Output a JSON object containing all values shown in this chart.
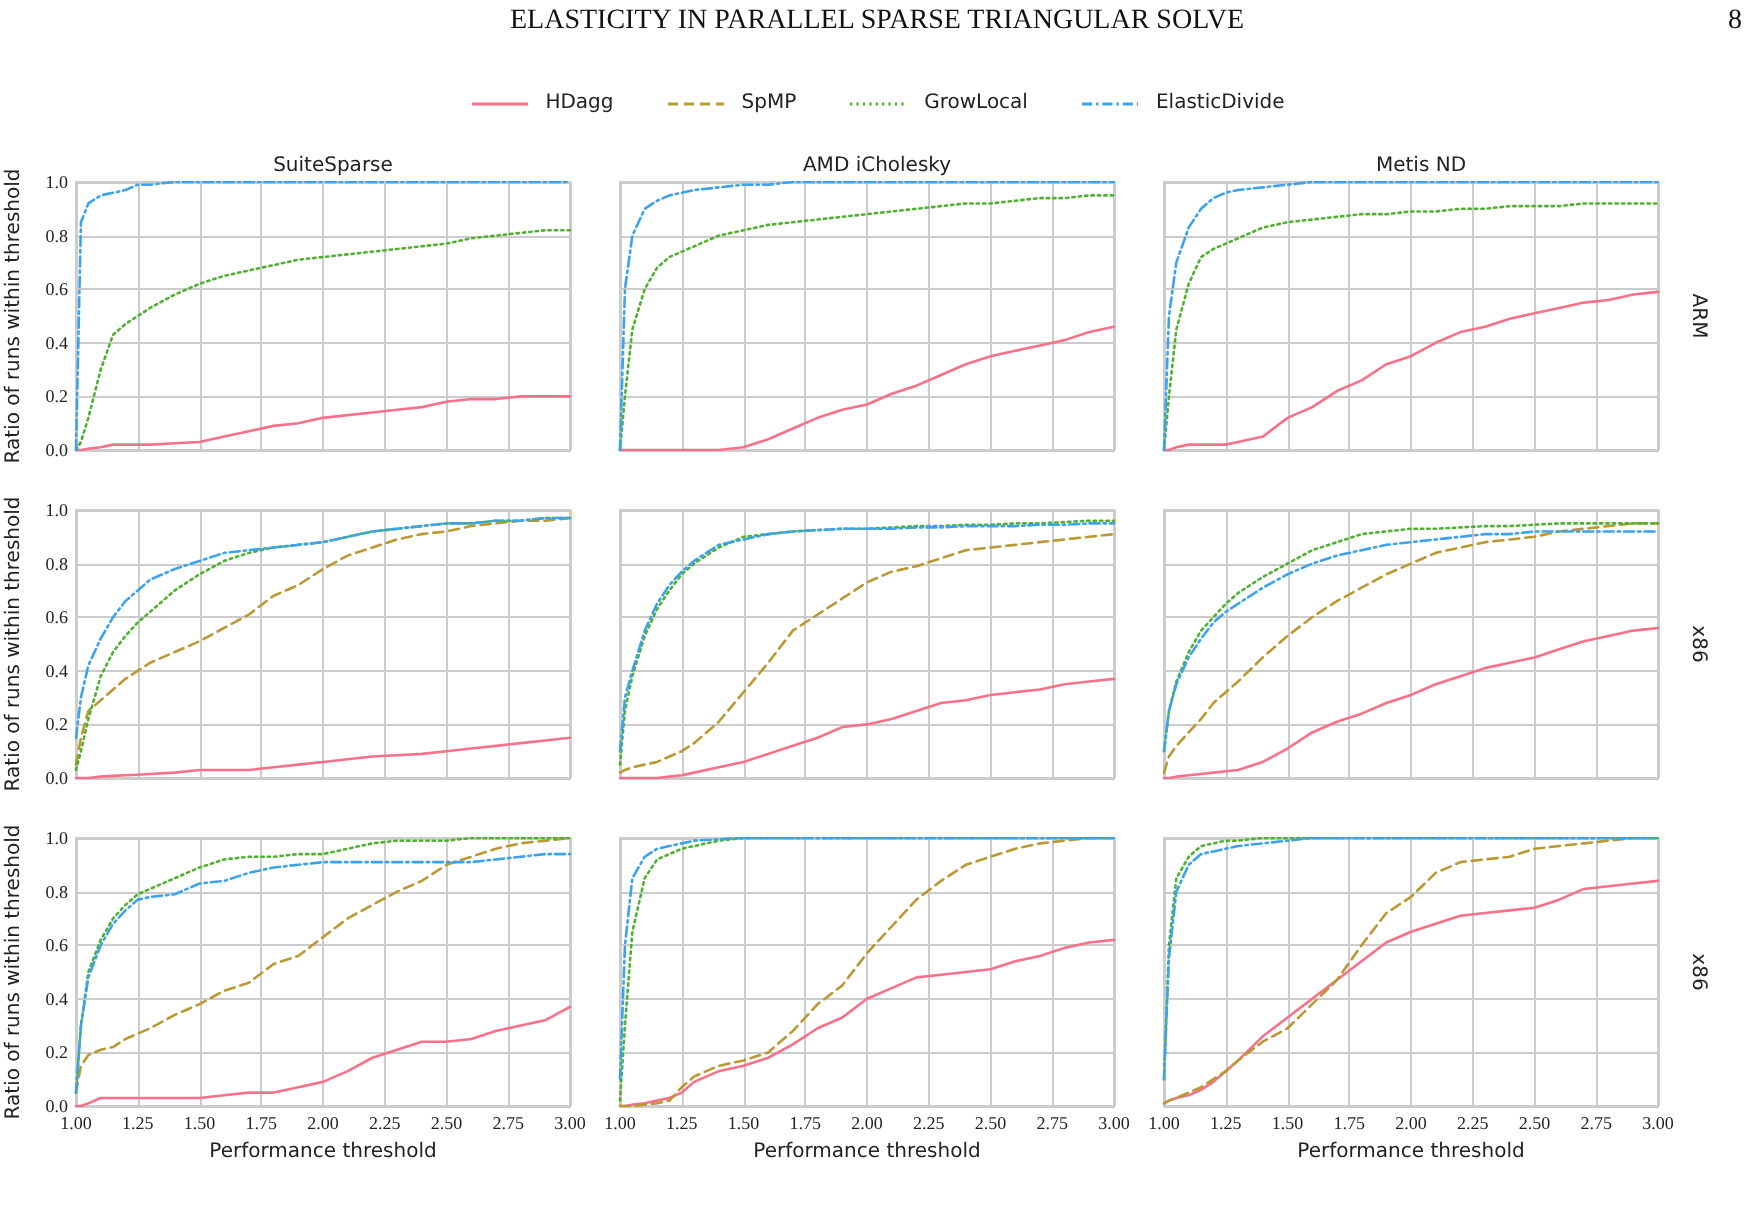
{
  "chart_data": [
    {
      "type": "line",
      "title": "SuiteSparse",
      "ylabel": "Ratio of runs within threshold",
      "annotations": [
        "ELASTICITY IN PARALLEL SPARSE TRIANGULAR SOLVE",
        "8"
      ],
      "legend": "top",
      "tick_labels": "y",
      "grid": true,
      "marker": "none",
      "x": [
        1,
        1.02,
        1.05,
        1.1,
        1.15,
        1.2,
        1.25,
        1.3,
        1.4,
        1.5,
        1.6,
        1.7,
        1.8,
        1.9,
        2,
        2.1,
        2.2,
        2.3,
        2.4,
        2.5,
        2.6,
        2.7,
        2.8,
        2.9,
        3
      ],
      "xlim": [
        1,
        3
      ],
      "xticks": [
        1,
        1.25,
        1.5,
        1.75,
        2,
        2.25,
        2.5,
        2.75,
        3
      ],
      "ylim": [
        0,
        1
      ],
      "yticks": [
        {
          "value": 0,
          "label": "0.0"
        },
        {
          "value": 0.2,
          "label": "0.2"
        },
        {
          "value": 0.4,
          "label": "0.4"
        },
        {
          "value": 0.6,
          "label": "0.6"
        },
        {
          "value": 0.8,
          "label": "0.8"
        },
        {
          "value": 1,
          "label": "1.0"
        }
      ],
      "series": [
        {
          "name": "HDagg",
          "color": "#f77189",
          "line_style": "solid",
          "values": [
            0,
            0,
            0.005,
            0.01,
            0.02,
            0.02,
            0.02,
            0.02,
            0.025,
            0.03,
            0.05,
            0.07,
            0.09,
            0.1,
            0.12,
            0.13,
            0.14,
            0.15,
            0.16,
            0.18,
            0.19,
            0.19,
            0.2,
            0.2,
            0.2
          ]
        },
        {
          "name": "GrowLocal",
          "color": "#50b131",
          "line_style": "dotted",
          "values": [
            0,
            0.03,
            0.12,
            0.3,
            0.43,
            0.47,
            0.5,
            0.53,
            0.58,
            0.62,
            0.65,
            0.67,
            0.69,
            0.71,
            0.72,
            0.73,
            0.74,
            0.75,
            0.76,
            0.77,
            0.79,
            0.8,
            0.81,
            0.82,
            0.82
          ]
        },
        {
          "name": "ElasticDivide",
          "color": "#3ba3ec",
          "line_style": "dashdot",
          "values": [
            0,
            0.85,
            0.92,
            0.95,
            0.96,
            0.97,
            0.99,
            0.99,
            1,
            1,
            1,
            1,
            1,
            1,
            1,
            1,
            1,
            1,
            1,
            1,
            1,
            1,
            1,
            1,
            1
          ]
        }
      ]
    },
    {
      "type": "line",
      "title": "AMD iCholesky",
      "tick_labels": false,
      "grid": true,
      "marker": "none",
      "x": [
        1,
        1.02,
        1.05,
        1.1,
        1.15,
        1.2,
        1.25,
        1.3,
        1.4,
        1.5,
        1.6,
        1.7,
        1.8,
        1.9,
        2,
        2.1,
        2.2,
        2.3,
        2.4,
        2.5,
        2.6,
        2.7,
        2.8,
        2.9,
        3
      ],
      "xlim": [
        1,
        3
      ],
      "xticks": [
        1,
        1.25,
        1.5,
        1.75,
        2,
        2.25,
        2.5,
        2.75,
        3
      ],
      "ylim": [
        0,
        1
      ],
      "yticks": [
        0,
        0.2,
        0.4,
        0.6,
        0.8,
        1
      ],
      "series": [
        {
          "name": "HDagg",
          "color": "#f77189",
          "line_style": "solid",
          "values": [
            0,
            0,
            0,
            0,
            0,
            0,
            0,
            0,
            0,
            0.01,
            0.04,
            0.08,
            0.12,
            0.15,
            0.17,
            0.21,
            0.24,
            0.28,
            0.32,
            0.35,
            0.37,
            0.39,
            0.41,
            0.44,
            0.46
          ]
        },
        {
          "name": "GrowLocal",
          "color": "#50b131",
          "line_style": "dotted",
          "values": [
            0,
            0.2,
            0.45,
            0.6,
            0.68,
            0.72,
            0.74,
            0.76,
            0.8,
            0.82,
            0.84,
            0.85,
            0.86,
            0.87,
            0.88,
            0.89,
            0.9,
            0.91,
            0.92,
            0.92,
            0.93,
            0.94,
            0.94,
            0.95,
            0.95
          ]
        },
        {
          "name": "ElasticDivide",
          "color": "#3ba3ec",
          "line_style": "dashdot",
          "values": [
            0,
            0.6,
            0.8,
            0.9,
            0.93,
            0.95,
            0.96,
            0.97,
            0.98,
            0.99,
            0.99,
            1,
            1,
            1,
            1,
            1,
            1,
            1,
            1,
            1,
            1,
            1,
            1,
            1,
            1
          ]
        }
      ]
    },
    {
      "type": "line",
      "title": "Metis ND",
      "annotations": [
        "ARM"
      ],
      "tick_labels": false,
      "grid": true,
      "marker": "none",
      "x": [
        1,
        1.02,
        1.05,
        1.1,
        1.15,
        1.2,
        1.25,
        1.3,
        1.4,
        1.5,
        1.6,
        1.7,
        1.8,
        1.9,
        2,
        2.1,
        2.2,
        2.3,
        2.4,
        2.5,
        2.6,
        2.7,
        2.8,
        2.9,
        3
      ],
      "xlim": [
        1,
        3
      ],
      "xticks": [
        1,
        1.25,
        1.5,
        1.75,
        2,
        2.25,
        2.5,
        2.75,
        3
      ],
      "ylim": [
        0,
        1
      ],
      "yticks": [
        0,
        0.2,
        0.4,
        0.6,
        0.8,
        1
      ],
      "series": [
        {
          "name": "HDagg",
          "color": "#f77189",
          "line_style": "solid",
          "values": [
            0,
            0,
            0.01,
            0.02,
            0.02,
            0.02,
            0.02,
            0.03,
            0.05,
            0.12,
            0.16,
            0.22,
            0.26,
            0.32,
            0.35,
            0.4,
            0.44,
            0.46,
            0.49,
            0.51,
            0.53,
            0.55,
            0.56,
            0.58,
            0.59
          ]
        },
        {
          "name": "GrowLocal",
          "color": "#50b131",
          "line_style": "dotted",
          "values": [
            0,
            0.2,
            0.45,
            0.62,
            0.72,
            0.75,
            0.77,
            0.79,
            0.83,
            0.85,
            0.86,
            0.87,
            0.88,
            0.88,
            0.89,
            0.89,
            0.9,
            0.9,
            0.91,
            0.91,
            0.91,
            0.92,
            0.92,
            0.92,
            0.92
          ]
        },
        {
          "name": "ElasticDivide",
          "color": "#3ba3ec",
          "line_style": "dashdot",
          "values": [
            0,
            0.5,
            0.7,
            0.83,
            0.9,
            0.94,
            0.96,
            0.97,
            0.98,
            0.99,
            1,
            1,
            1,
            1,
            1,
            1,
            1,
            1,
            1,
            1,
            1,
            1,
            1,
            1,
            1
          ]
        }
      ]
    },
    {
      "type": "line",
      "ylabel": "Ratio of runs within threshold",
      "tick_labels": "y",
      "grid": true,
      "marker": "none",
      "x": [
        1,
        1.02,
        1.05,
        1.1,
        1.15,
        1.2,
        1.25,
        1.3,
        1.4,
        1.5,
        1.6,
        1.7,
        1.8,
        1.9,
        2,
        2.1,
        2.2,
        2.3,
        2.4,
        2.5,
        2.6,
        2.7,
        2.8,
        2.9,
        3
      ],
      "xlim": [
        1,
        3
      ],
      "xticks": [
        1,
        1.25,
        1.5,
        1.75,
        2,
        2.25,
        2.5,
        2.75,
        3
      ],
      "ylim": [
        0,
        1
      ],
      "yticks": [
        {
          "value": 0,
          "label": "0.0"
        },
        {
          "value": 0.2,
          "label": "0.2"
        },
        {
          "value": 0.4,
          "label": "0.4"
        },
        {
          "value": 0.6,
          "label": "0.6"
        },
        {
          "value": 0.8,
          "label": "0.8"
        },
        {
          "value": 1,
          "label": "1.0"
        }
      ],
      "series": [
        {
          "name": "HDagg",
          "color": "#f77189",
          "line_style": "solid",
          "values": [
            0,
            0,
            0,
            0.005,
            0.008,
            0.01,
            0.012,
            0.015,
            0.02,
            0.03,
            0.03,
            0.03,
            0.04,
            0.05,
            0.06,
            0.07,
            0.08,
            0.085,
            0.09,
            0.1,
            0.11,
            0.12,
            0.13,
            0.14,
            0.15
          ]
        },
        {
          "name": "SpMP",
          "color": "#bb9832",
          "line_style": "dashed",
          "values": [
            0.05,
            0.15,
            0.25,
            0.29,
            0.33,
            0.37,
            0.4,
            0.43,
            0.47,
            0.51,
            0.56,
            0.61,
            0.68,
            0.72,
            0.78,
            0.83,
            0.86,
            0.89,
            0.91,
            0.92,
            0.94,
            0.95,
            0.96,
            0.96,
            0.97
          ]
        },
        {
          "name": "GrowLocal",
          "color": "#50b131",
          "line_style": "dotted",
          "values": [
            0.03,
            0.1,
            0.22,
            0.38,
            0.47,
            0.53,
            0.58,
            0.62,
            0.7,
            0.76,
            0.81,
            0.84,
            0.86,
            0.87,
            0.88,
            0.9,
            0.92,
            0.93,
            0.94,
            0.95,
            0.95,
            0.96,
            0.96,
            0.97,
            0.97
          ]
        },
        {
          "name": "ElasticDivide",
          "color": "#3ba3ec",
          "line_style": "dashdot",
          "values": [
            0.15,
            0.3,
            0.42,
            0.52,
            0.6,
            0.66,
            0.7,
            0.74,
            0.78,
            0.81,
            0.84,
            0.85,
            0.86,
            0.87,
            0.88,
            0.9,
            0.92,
            0.93,
            0.94,
            0.95,
            0.95,
            0.96,
            0.96,
            0.97,
            0.97
          ]
        }
      ]
    },
    {
      "type": "line",
      "tick_labels": false,
      "grid": true,
      "marker": "none",
      "x": [
        1,
        1.02,
        1.05,
        1.1,
        1.15,
        1.2,
        1.25,
        1.3,
        1.4,
        1.5,
        1.6,
        1.7,
        1.8,
        1.9,
        2,
        2.1,
        2.2,
        2.3,
        2.4,
        2.5,
        2.6,
        2.7,
        2.8,
        2.9,
        3
      ],
      "xlim": [
        1,
        3
      ],
      "xticks": [
        1,
        1.25,
        1.5,
        1.75,
        2,
        2.25,
        2.5,
        2.75,
        3
      ],
      "ylim": [
        0,
        1
      ],
      "yticks": [
        0,
        0.2,
        0.4,
        0.6,
        0.8,
        1
      ],
      "series": [
        {
          "name": "HDagg",
          "color": "#f77189",
          "line_style": "solid",
          "values": [
            0,
            0,
            0,
            0,
            0,
            0.005,
            0.01,
            0.02,
            0.04,
            0.06,
            0.09,
            0.12,
            0.15,
            0.19,
            0.2,
            0.22,
            0.25,
            0.28,
            0.29,
            0.31,
            0.32,
            0.33,
            0.35,
            0.36,
            0.37
          ]
        },
        {
          "name": "SpMP",
          "color": "#bb9832",
          "line_style": "dashed",
          "values": [
            0.02,
            0.03,
            0.04,
            0.05,
            0.06,
            0.08,
            0.1,
            0.13,
            0.21,
            0.32,
            0.43,
            0.55,
            0.61,
            0.67,
            0.73,
            0.77,
            0.79,
            0.82,
            0.85,
            0.86,
            0.87,
            0.88,
            0.89,
            0.9,
            0.91
          ]
        },
        {
          "name": "GrowLocal",
          "color": "#50b131",
          "line_style": "dotted",
          "values": [
            0.05,
            0.25,
            0.38,
            0.53,
            0.63,
            0.7,
            0.76,
            0.8,
            0.86,
            0.9,
            0.91,
            0.92,
            0.925,
            0.93,
            0.93,
            0.935,
            0.94,
            0.94,
            0.945,
            0.945,
            0.95,
            0.95,
            0.955,
            0.96,
            0.96
          ]
        },
        {
          "name": "ElasticDivide",
          "color": "#3ba3ec",
          "line_style": "dashdot",
          "values": [
            0.1,
            0.3,
            0.4,
            0.55,
            0.65,
            0.72,
            0.77,
            0.81,
            0.87,
            0.89,
            0.91,
            0.92,
            0.925,
            0.93,
            0.93,
            0.93,
            0.935,
            0.935,
            0.94,
            0.94,
            0.94,
            0.945,
            0.945,
            0.95,
            0.95
          ]
        }
      ]
    },
    {
      "type": "line",
      "annotations": [
        "x86"
      ],
      "tick_labels": false,
      "grid": true,
      "marker": "none",
      "x": [
        1,
        1.02,
        1.05,
        1.1,
        1.15,
        1.2,
        1.25,
        1.3,
        1.4,
        1.5,
        1.6,
        1.7,
        1.8,
        1.9,
        2,
        2.1,
        2.2,
        2.3,
        2.4,
        2.5,
        2.6,
        2.7,
        2.8,
        2.9,
        3
      ],
      "xlim": [
        1,
        3
      ],
      "xticks": [
        1,
        1.25,
        1.5,
        1.75,
        2,
        2.25,
        2.5,
        2.75,
        3
      ],
      "ylim": [
        0,
        1
      ],
      "yticks": [
        0,
        0.2,
        0.4,
        0.6,
        0.8,
        1
      ],
      "series": [
        {
          "name": "HDagg",
          "color": "#f77189",
          "line_style": "solid",
          "values": [
            0,
            0,
            0.005,
            0.01,
            0.015,
            0.02,
            0.025,
            0.03,
            0.06,
            0.11,
            0.17,
            0.21,
            0.24,
            0.28,
            0.31,
            0.35,
            0.38,
            0.41,
            0.43,
            0.45,
            0.48,
            0.51,
            0.53,
            0.55,
            0.56
          ]
        },
        {
          "name": "SpMP",
          "color": "#bb9832",
          "line_style": "dashed",
          "values": [
            0.02,
            0.08,
            0.12,
            0.17,
            0.22,
            0.28,
            0.32,
            0.36,
            0.45,
            0.53,
            0.6,
            0.66,
            0.71,
            0.76,
            0.8,
            0.84,
            0.86,
            0.88,
            0.89,
            0.9,
            0.92,
            0.93,
            0.94,
            0.95,
            0.95
          ]
        },
        {
          "name": "GrowLocal",
          "color": "#50b131",
          "line_style": "dotted",
          "values": [
            0.1,
            0.25,
            0.36,
            0.47,
            0.55,
            0.6,
            0.65,
            0.69,
            0.75,
            0.8,
            0.85,
            0.88,
            0.91,
            0.92,
            0.93,
            0.93,
            0.935,
            0.94,
            0.94,
            0.945,
            0.95,
            0.95,
            0.95,
            0.95,
            0.95
          ]
        },
        {
          "name": "ElasticDivide",
          "color": "#3ba3ec",
          "line_style": "dashdot",
          "values": [
            0.1,
            0.25,
            0.35,
            0.45,
            0.52,
            0.58,
            0.62,
            0.65,
            0.71,
            0.76,
            0.8,
            0.83,
            0.85,
            0.87,
            0.88,
            0.89,
            0.9,
            0.91,
            0.91,
            0.92,
            0.92,
            0.92,
            0.92,
            0.92,
            0.92
          ]
        }
      ]
    },
    {
      "type": "line",
      "xlabel": "Performance threshold",
      "ylabel": "Ratio of runs within threshold",
      "grid": true,
      "marker": "none",
      "x": [
        1,
        1.02,
        1.05,
        1.1,
        1.15,
        1.2,
        1.25,
        1.3,
        1.4,
        1.5,
        1.6,
        1.7,
        1.8,
        1.9,
        2,
        2.1,
        2.2,
        2.3,
        2.4,
        2.5,
        2.6,
        2.7,
        2.8,
        2.9,
        3
      ],
      "xlim": [
        1,
        3
      ],
      "xticks": [
        {
          "value": 1,
          "label": "1.00"
        },
        {
          "value": 1.25,
          "label": "1.25"
        },
        {
          "value": 1.5,
          "label": "1.50"
        },
        {
          "value": 1.75,
          "label": "1.75"
        },
        {
          "value": 2,
          "label": "2.00"
        },
        {
          "value": 2.25,
          "label": "2.25"
        },
        {
          "value": 2.5,
          "label": "2.50"
        },
        {
          "value": 2.75,
          "label": "2.75"
        },
        {
          "value": 3,
          "label": "3.00"
        }
      ],
      "ylim": [
        0,
        1
      ],
      "yticks": [
        {
          "value": 0,
          "label": "0.0"
        },
        {
          "value": 0.2,
          "label": "0.2"
        },
        {
          "value": 0.4,
          "label": "0.4"
        },
        {
          "value": 0.6,
          "label": "0.6"
        },
        {
          "value": 0.8,
          "label": "0.8"
        },
        {
          "value": 1,
          "label": "1.0"
        }
      ],
      "series": [
        {
          "name": "HDagg",
          "color": "#f77189",
          "line_style": "solid",
          "values": [
            0,
            0,
            0.01,
            0.03,
            0.03,
            0.03,
            0.03,
            0.03,
            0.03,
            0.03,
            0.04,
            0.05,
            0.05,
            0.07,
            0.09,
            0.13,
            0.18,
            0.21,
            0.24,
            0.24,
            0.25,
            0.28,
            0.3,
            0.32,
            0.37
          ]
        },
        {
          "name": "SpMP",
          "color": "#bb9832",
          "line_style": "dashed",
          "values": [
            0.05,
            0.15,
            0.19,
            0.21,
            0.22,
            0.25,
            0.27,
            0.29,
            0.34,
            0.38,
            0.43,
            0.46,
            0.53,
            0.56,
            0.63,
            0.7,
            0.75,
            0.8,
            0.84,
            0.9,
            0.93,
            0.96,
            0.98,
            0.99,
            1
          ]
        },
        {
          "name": "GrowLocal",
          "color": "#50b131",
          "line_style": "dotted",
          "values": [
            0.05,
            0.3,
            0.5,
            0.62,
            0.7,
            0.75,
            0.79,
            0.81,
            0.85,
            0.89,
            0.92,
            0.93,
            0.93,
            0.94,
            0.94,
            0.96,
            0.98,
            0.99,
            0.99,
            0.99,
            1,
            1,
            1,
            1,
            1
          ]
        },
        {
          "name": "ElasticDivide",
          "color": "#3ba3ec",
          "line_style": "dashdot",
          "values": [
            0.05,
            0.3,
            0.48,
            0.6,
            0.68,
            0.73,
            0.77,
            0.78,
            0.79,
            0.83,
            0.84,
            0.87,
            0.89,
            0.9,
            0.91,
            0.91,
            0.91,
            0.91,
            0.91,
            0.91,
            0.91,
            0.92,
            0.93,
            0.94,
            0.94
          ]
        }
      ]
    },
    {
      "type": "line",
      "xlabel": "Performance threshold",
      "tick_labels": "x",
      "grid": true,
      "marker": "none",
      "x": [
        1,
        1.02,
        1.05,
        1.1,
        1.15,
        1.2,
        1.25,
        1.3,
        1.4,
        1.5,
        1.6,
        1.7,
        1.8,
        1.9,
        2,
        2.1,
        2.2,
        2.3,
        2.4,
        2.5,
        2.6,
        2.7,
        2.8,
        2.9,
        3
      ],
      "xlim": [
        1,
        3
      ],
      "xticks": [
        {
          "value": 1,
          "label": "1.00"
        },
        {
          "value": 1.25,
          "label": "1.25"
        },
        {
          "value": 1.5,
          "label": "1.50"
        },
        {
          "value": 1.75,
          "label": "1.75"
        },
        {
          "value": 2,
          "label": "2.00"
        },
        {
          "value": 2.25,
          "label": "2.25"
        },
        {
          "value": 2.5,
          "label": "2.50"
        },
        {
          "value": 2.75,
          "label": "2.75"
        },
        {
          "value": 3,
          "label": "3.00"
        }
      ],
      "ylim": [
        0,
        1
      ],
      "yticks": [
        0,
        0.2,
        0.4,
        0.6,
        0.8,
        1
      ],
      "series": [
        {
          "name": "HDagg",
          "color": "#f77189",
          "line_style": "solid",
          "values": [
            0,
            0,
            0.005,
            0.01,
            0.02,
            0.03,
            0.05,
            0.09,
            0.13,
            0.15,
            0.18,
            0.23,
            0.29,
            0.33,
            0.4,
            0.44,
            0.48,
            0.49,
            0.5,
            0.51,
            0.54,
            0.56,
            0.59,
            0.61,
            0.62
          ]
        },
        {
          "name": "SpMP",
          "color": "#bb9832",
          "line_style": "dashed",
          "values": [
            0,
            0,
            0,
            0.005,
            0.01,
            0.02,
            0.07,
            0.11,
            0.15,
            0.17,
            0.2,
            0.28,
            0.38,
            0.45,
            0.57,
            0.67,
            0.77,
            0.84,
            0.9,
            0.93,
            0.96,
            0.98,
            0.99,
            1,
            1
          ]
        },
        {
          "name": "GrowLocal",
          "color": "#50b131",
          "line_style": "dotted",
          "values": [
            0.02,
            0.3,
            0.65,
            0.85,
            0.92,
            0.94,
            0.96,
            0.97,
            0.99,
            1,
            1,
            1,
            1,
            1,
            1,
            1,
            1,
            1,
            1,
            1,
            1,
            1,
            1,
            1,
            1
          ]
        },
        {
          "name": "ElasticDivide",
          "color": "#3ba3ec",
          "line_style": "dashdot",
          "values": [
            0.1,
            0.6,
            0.85,
            0.93,
            0.96,
            0.97,
            0.98,
            0.99,
            0.995,
            1,
            1,
            1,
            1,
            1,
            1,
            1,
            1,
            1,
            1,
            1,
            1,
            1,
            1,
            1,
            1
          ]
        }
      ]
    },
    {
      "type": "line",
      "xlabel": "Performance threshold",
      "annotations": [
        "x86"
      ],
      "tick_labels": "x",
      "grid": true,
      "marker": "none",
      "x": [
        1,
        1.02,
        1.05,
        1.1,
        1.15,
        1.2,
        1.25,
        1.3,
        1.4,
        1.5,
        1.6,
        1.7,
        1.8,
        1.9,
        2,
        2.1,
        2.2,
        2.3,
        2.4,
        2.5,
        2.6,
        2.7,
        2.8,
        2.9,
        3
      ],
      "xlim": [
        1,
        3
      ],
      "xticks": [
        {
          "value": 1,
          "label": "1.00"
        },
        {
          "value": 1.25,
          "label": "1.25"
        },
        {
          "value": 1.5,
          "label": "1.50"
        },
        {
          "value": 1.75,
          "label": "1.75"
        },
        {
          "value": 2,
          "label": "2.00"
        },
        {
          "value": 2.25,
          "label": "2.25"
        },
        {
          "value": 2.5,
          "label": "2.50"
        },
        {
          "value": 2.75,
          "label": "2.75"
        },
        {
          "value": 3,
          "label": "3.00"
        }
      ],
      "ylim": [
        0,
        1
      ],
      "yticks": [
        0,
        0.2,
        0.4,
        0.6,
        0.8,
        1
      ],
      "series": [
        {
          "name": "HDagg",
          "color": "#f77189",
          "line_style": "solid",
          "values": [
            0.01,
            0.02,
            0.03,
            0.04,
            0.06,
            0.09,
            0.13,
            0.17,
            0.26,
            0.33,
            0.4,
            0.47,
            0.54,
            0.61,
            0.65,
            0.68,
            0.71,
            0.72,
            0.73,
            0.74,
            0.77,
            0.81,
            0.82,
            0.83,
            0.84
          ]
        },
        {
          "name": "SpMP",
          "color": "#bb9832",
          "line_style": "dashed",
          "values": [
            0.01,
            0.02,
            0.03,
            0.05,
            0.07,
            0.1,
            0.13,
            0.17,
            0.24,
            0.29,
            0.38,
            0.47,
            0.6,
            0.72,
            0.78,
            0.87,
            0.91,
            0.92,
            0.93,
            0.96,
            0.97,
            0.98,
            0.99,
            1,
            1
          ]
        },
        {
          "name": "GrowLocal",
          "color": "#50b131",
          "line_style": "dotted",
          "values": [
            0.1,
            0.6,
            0.85,
            0.93,
            0.97,
            0.98,
            0.99,
            0.99,
            1,
            1,
            1,
            1,
            1,
            1,
            1,
            1,
            1,
            1,
            1,
            1,
            1,
            1,
            1,
            1,
            1
          ]
        },
        {
          "name": "ElasticDivide",
          "color": "#3ba3ec",
          "line_style": "dashdot",
          "values": [
            0.1,
            0.55,
            0.8,
            0.9,
            0.94,
            0.95,
            0.96,
            0.97,
            0.98,
            0.99,
            1,
            1,
            1,
            1,
            1,
            1,
            1,
            1,
            1,
            1,
            1,
            1,
            1,
            1,
            1
          ]
        }
      ]
    }
  ]
}
